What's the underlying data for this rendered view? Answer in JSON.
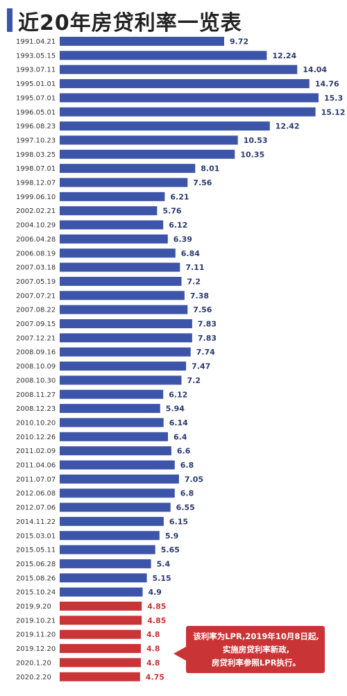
{
  "title": "近20年房贷利率一览表",
  "colors": {
    "accent": "#3d55a8",
    "bar_blue": "#3d55a8",
    "bar_red": "#c93536",
    "label_blue": "#2b3a6e",
    "label_red": "#c93536",
    "callout_bg": "#c93536"
  },
  "callout": {
    "lines": [
      "该利率为LPR,2019年10月8日起,",
      "实施房贷利率新政,",
      "房贷利率参照LPR执行。"
    ]
  },
  "chart_data": {
    "type": "bar",
    "orientation": "horizontal",
    "title": "近20年房贷利率一览表",
    "categories": [
      "1991.04.21",
      "1993.05.15",
      "1993.07.11",
      "1995.01.01",
      "1995.07.01",
      "1996.05.01",
      "1996.08.23",
      "1997.10.23",
      "1998.03.25",
      "1998.07.01",
      "1998.12.07",
      "1999.06.10",
      "2002.02.21",
      "2004.10.29",
      "2006.04.28",
      "2006.08.19",
      "2007.03.18",
      "2007.05.19",
      "2007.07.21",
      "2007.08.22",
      "2007.09.15",
      "2007.12.21",
      "2008.09.16",
      "2008.10.09",
      "2008.10.30",
      "2008.11.27",
      "2008.12.23",
      "2010.10.20",
      "2010.12.26",
      "2011.02.09",
      "2011.04.06",
      "2011.07.07",
      "2012.06.08",
      "2012.07.06",
      "2014.11.22",
      "2015.03.01",
      "2015.05.11",
      "2015.06.28",
      "2015.08.26",
      "2015.10.24",
      "2019.9.20",
      "2019.10.21",
      "2019.11.20",
      "2019.12.20",
      "2020.1.20",
      "2020.2.20"
    ],
    "values": [
      9.72,
      12.24,
      14.04,
      14.76,
      15.3,
      15.12,
      12.42,
      10.53,
      10.35,
      8.01,
      7.56,
      6.21,
      5.76,
      6.12,
      6.39,
      6.84,
      7.11,
      7.2,
      7.38,
      7.56,
      7.83,
      7.83,
      7.74,
      7.47,
      7.2,
      6.12,
      5.94,
      6.14,
      6.4,
      6.6,
      6.8,
      7.05,
      6.8,
      6.55,
      6.15,
      5.9,
      5.65,
      5.4,
      5.15,
      4.9,
      4.85,
      4.85,
      4.8,
      4.8,
      4.8,
      4.75
    ],
    "value_labels": [
      "9.72",
      "12.24",
      "14.04",
      "14.76",
      "15.3",
      "15.12",
      "12.42",
      "10.53",
      "10.35",
      "8.01",
      "7.56",
      "6.21",
      "5.76",
      "6.12",
      "6.39",
      "6.84",
      "7.11",
      "7.2",
      "7.38",
      "7.56",
      "7.83",
      "7.83",
      "7.74",
      "7.47",
      "7.2",
      "6.12",
      "5.94",
      "6.14",
      "6.4",
      "6.6",
      "6.8",
      "7.05",
      "6.8",
      "6.55",
      "6.15",
      "5.9",
      "5.65",
      "5.4",
      "5.15",
      "4.9",
      "4.85",
      "4.85",
      "4.8",
      "4.8",
      "4.8",
      "4.75"
    ],
    "highlight_from_index": 40,
    "xlim": [
      0,
      15.3
    ],
    "grid": false,
    "legend": "none"
  }
}
